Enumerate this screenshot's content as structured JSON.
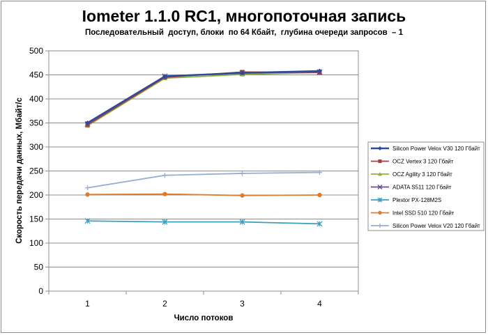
{
  "chart_data": {
    "type": "line",
    "title": "Iometer 1.1.0 RC1, многопоточная запись",
    "subtitle": "Последовательный  доступ, блоки  по 64 Кбайт,  глубина очереди запросов  – 1",
    "xlabel": "Число  потоков",
    "ylabel": "Скорость  передачи данных, Мбайт/с",
    "categories": [
      "1",
      "2",
      "3",
      "4"
    ],
    "ylim": [
      0,
      500
    ],
    "yticks": [
      0,
      50,
      100,
      150,
      200,
      250,
      300,
      350,
      400,
      450,
      500
    ],
    "grid": "horizontal",
    "legend_position": "right",
    "series": [
      {
        "name": "Silicon Power Velox V30 120 Гбайт",
        "color": "#2e4a9a",
        "marker": "diamond",
        "values": [
          350,
          447,
          454,
          458
        ]
      },
      {
        "name": "OCZ Vertex 3 120 Гбайт",
        "color": "#b03a3a",
        "marker": "square",
        "values": [
          346,
          445,
          456,
          455
        ]
      },
      {
        "name": "OCZ Agility 3 120 Гбайт",
        "color": "#8db339",
        "marker": "triangle",
        "values": [
          344,
          443,
          451,
          455
        ]
      },
      {
        "name": "ADATA S511 120 Гбайт",
        "color": "#6a4c93",
        "marker": "x",
        "values": [
          348,
          447,
          454,
          456
        ]
      },
      {
        "name": "Plextor PX-128M2S",
        "color": "#3a9fbf",
        "marker": "star",
        "values": [
          146,
          144,
          144,
          140
        ]
      },
      {
        "name": "Intel SSD 510 120 Гбайт",
        "color": "#e07b2a",
        "marker": "circle",
        "values": [
          201,
          202,
          199,
          200
        ]
      },
      {
        "name": "Silicon Power Velox V20 120 Гбайт",
        "color": "#94aed4",
        "marker": "plus",
        "values": [
          215,
          241,
          245,
          247
        ]
      }
    ]
  }
}
